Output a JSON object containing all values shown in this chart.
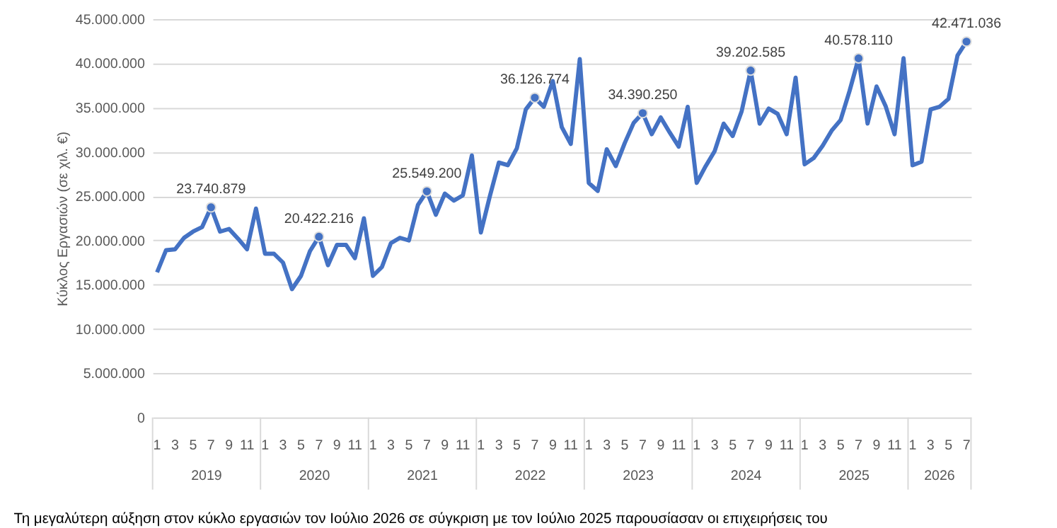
{
  "chart_data": {
    "type": "line",
    "ylabel": "Κύκλος Εργασιών (σε χιλ. €)",
    "categories": [
      "1",
      null,
      "3",
      null,
      "5",
      null,
      "7",
      null,
      "9",
      null,
      "11",
      null,
      "1",
      null,
      "3",
      null,
      "5",
      null,
      "7",
      null,
      "9",
      null,
      "11",
      null,
      "1",
      null,
      "3",
      null,
      "5",
      null,
      "7",
      null,
      "9",
      null,
      "11",
      null,
      "1",
      null,
      "3",
      null,
      "5",
      null,
      "7",
      null,
      "9",
      null,
      "11",
      null,
      "1",
      null,
      "3",
      null,
      "5",
      null,
      "7",
      null,
      "9",
      null,
      "11",
      null,
      "1",
      null,
      "3",
      null,
      "5",
      null,
      "7",
      null,
      "9",
      null,
      "11",
      null,
      "1",
      null,
      "3",
      null,
      "5",
      null,
      "7",
      null,
      "9",
      null,
      "11",
      null,
      "1",
      null,
      "3",
      null,
      "5",
      null,
      "7"
    ],
    "series": [
      {
        "color": "#4472c4",
        "values": [
          16400000,
          18900000,
          19000000,
          20300000,
          21000000,
          21500000,
          23740879,
          21000000,
          21300000,
          20200000,
          19000000,
          23600000,
          18500000,
          18500000,
          17500000,
          14500000,
          16000000,
          18800000,
          20422216,
          17200000,
          19500000,
          19500000,
          18000000,
          22500000,
          16000000,
          17000000,
          19700000,
          20300000,
          20000000,
          24000000,
          25549200,
          22900000,
          25300000,
          24500000,
          25100000,
          29600000,
          20900000,
          25000000,
          28800000,
          28500000,
          30400000,
          34800000,
          36126774,
          35100000,
          38000000,
          32800000,
          30900000,
          40500000,
          26500000,
          25600000,
          30300000,
          28400000,
          31000000,
          33300000,
          34390250,
          32000000,
          33900000,
          32200000,
          30600000,
          35100000,
          26500000,
          28400000,
          30100000,
          33200000,
          31800000,
          34600000,
          39202585,
          33200000,
          34900000,
          34300000,
          32000000,
          38400000,
          28600000,
          29300000,
          30700000,
          32400000,
          33600000,
          36900000,
          40578110,
          33200000,
          37400000,
          35200000,
          32000000,
          40600000,
          28500000,
          28900000,
          34800000,
          35100000,
          36000000,
          40900000,
          42471036
        ],
        "value_labels": [
          null,
          null,
          null,
          null,
          null,
          null,
          "23.740.879",
          null,
          null,
          null,
          null,
          null,
          null,
          null,
          null,
          null,
          null,
          null,
          "20.422.216",
          null,
          null,
          null,
          null,
          null,
          null,
          null,
          null,
          null,
          null,
          null,
          "25.549.200",
          null,
          null,
          null,
          null,
          null,
          null,
          null,
          null,
          null,
          null,
          null,
          "36.126.774",
          null,
          null,
          null,
          null,
          null,
          null,
          null,
          null,
          null,
          null,
          null,
          "34.390.250",
          null,
          null,
          null,
          null,
          null,
          null,
          null,
          null,
          null,
          null,
          null,
          "39.202.585",
          null,
          null,
          null,
          null,
          null,
          null,
          null,
          null,
          null,
          null,
          null,
          "40.578.110",
          null,
          null,
          null,
          null,
          null,
          null,
          null,
          null,
          null,
          null,
          null,
          "42.471.036"
        ]
      }
    ],
    "ylim": [
      0,
      45000000
    ],
    "yticks": [
      {
        "value": 0,
        "label": "0"
      },
      {
        "value": 5000000,
        "label": "5.000.000"
      },
      {
        "value": 10000000,
        "label": "10.000.000"
      },
      {
        "value": 15000000,
        "label": "15.000.000"
      },
      {
        "value": 20000000,
        "label": "20.000.000"
      },
      {
        "value": 25000000,
        "label": "25.000.000"
      },
      {
        "value": 30000000,
        "label": "30.000.000"
      },
      {
        "value": 35000000,
        "label": "35.000.000"
      },
      {
        "value": 40000000,
        "label": "40.000.000"
      },
      {
        "value": 45000000,
        "label": "45.000.000"
      }
    ],
    "grid": "y",
    "annotations": [
      "2019",
      "2020",
      "2021",
      "2022",
      "2023",
      "2024",
      "2025",
      "2026",
      "Τη μεγαλύτερη αύξηση στον κύκλο εργασιών τον Ιούλιο 2026 σε σύγκριση με τον Ιούλιο 2025 παρουσίασαν οι επιχειρήσεις του"
    ]
  }
}
